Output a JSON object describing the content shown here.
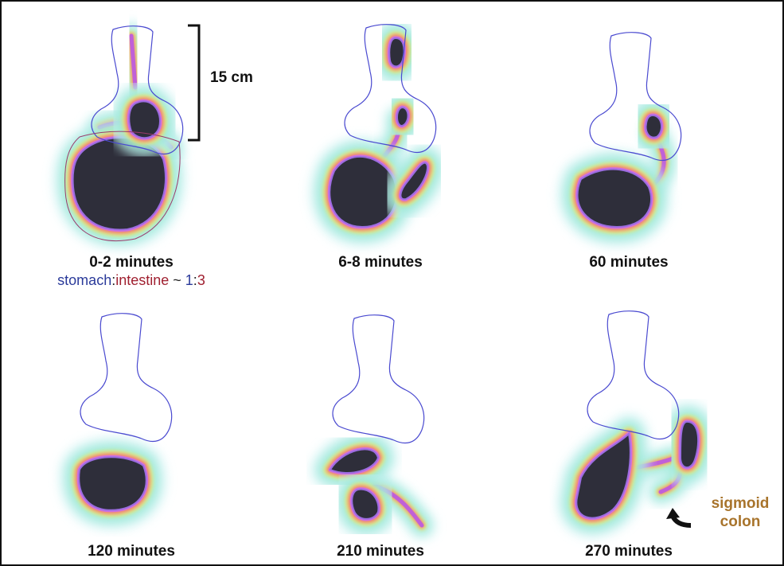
{
  "scale_bar": {
    "label": "15 cm"
  },
  "panels": [
    {
      "label": "0-2 minutes"
    },
    {
      "label": "6-8 minutes"
    },
    {
      "label": "60 minutes"
    },
    {
      "label": "120 minutes"
    },
    {
      "label": "210 minutes"
    },
    {
      "label": "270 minutes"
    }
  ],
  "ratio_note": [
    "stomach",
    ":",
    "intestine",
    " ~ ",
    "1",
    ":",
    "3"
  ],
  "annotation": {
    "lines": [
      "sigmoid",
      "colon"
    ]
  }
}
